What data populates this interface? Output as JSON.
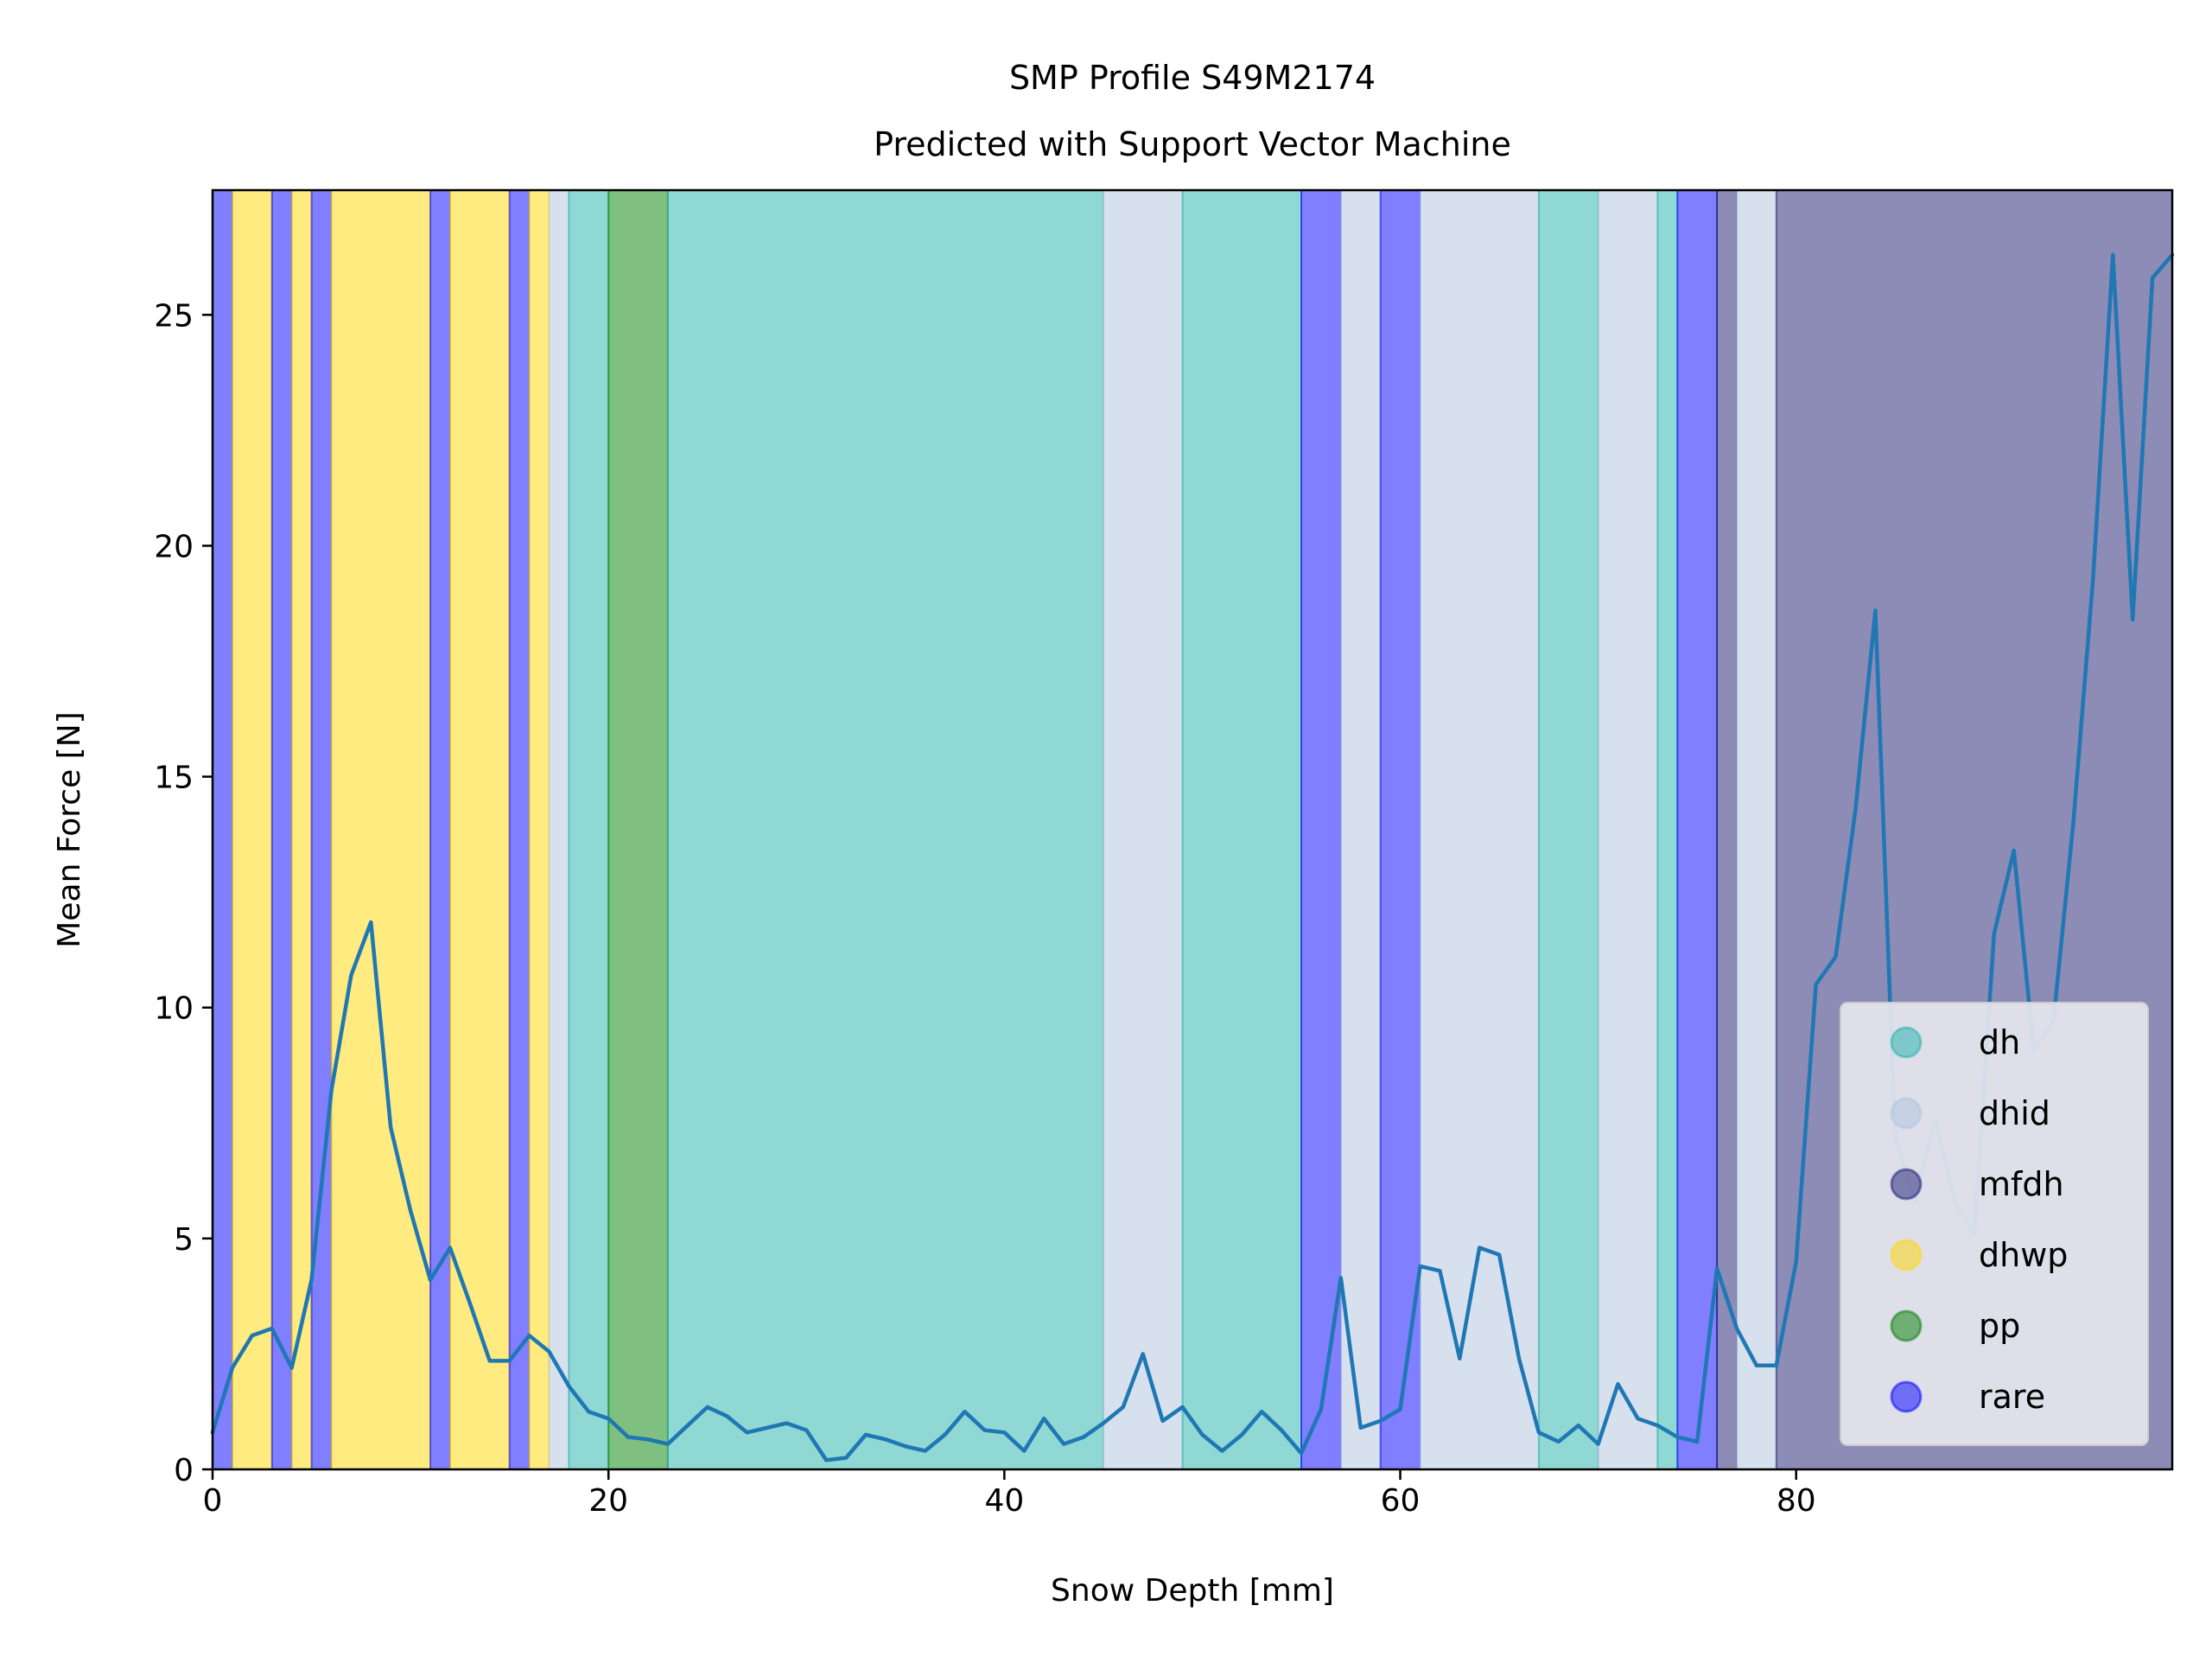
{
  "chart_data": {
    "type": "line",
    "title": "SMP Profile S49M2174",
    "subtitle": "Predicted with Support Vector Machine",
    "xlabel": "Snow Depth [mm]",
    "ylabel": "Mean Force [N]",
    "xlim": [
      0,
      99
    ],
    "ylim": [
      0,
      27.7
    ],
    "xticks": [
      0,
      20,
      40,
      60,
      80
    ],
    "yticks": [
      0,
      5,
      10,
      15,
      20,
      25
    ],
    "grid": false,
    "legend_position": "bottom-right",
    "classes": [
      {
        "name": "dh",
        "color": "#20b2aa"
      },
      {
        "name": "dhid",
        "color": "#b0c4de"
      },
      {
        "name": "mfdh",
        "color": "#191970"
      },
      {
        "name": "dhwp",
        "color": "#ffd700"
      },
      {
        "name": "pp",
        "color": "#008000"
      },
      {
        "name": "rare",
        "color": "#0000ff"
      }
    ],
    "segments": [
      {
        "start": 0,
        "end": 1,
        "label": "rare"
      },
      {
        "start": 1,
        "end": 3,
        "label": "dhwp"
      },
      {
        "start": 3,
        "end": 4,
        "label": "rare"
      },
      {
        "start": 4,
        "end": 5,
        "label": "dhwp"
      },
      {
        "start": 5,
        "end": 6,
        "label": "rare"
      },
      {
        "start": 6,
        "end": 11,
        "label": "dhwp"
      },
      {
        "start": 11,
        "end": 12,
        "label": "rare"
      },
      {
        "start": 12,
        "end": 15,
        "label": "dhwp"
      },
      {
        "start": 15,
        "end": 16,
        "label": "rare"
      },
      {
        "start": 16,
        "end": 17,
        "label": "dhwp"
      },
      {
        "start": 17,
        "end": 18,
        "label": "dhid"
      },
      {
        "start": 18,
        "end": 20,
        "label": "dh"
      },
      {
        "start": 20,
        "end": 23,
        "label": "pp"
      },
      {
        "start": 23,
        "end": 45,
        "label": "dh"
      },
      {
        "start": 45,
        "end": 49,
        "label": "dhid"
      },
      {
        "start": 49,
        "end": 55,
        "label": "dh"
      },
      {
        "start": 55,
        "end": 57,
        "label": "rare"
      },
      {
        "start": 57,
        "end": 59,
        "label": "dhid"
      },
      {
        "start": 59,
        "end": 61,
        "label": "rare"
      },
      {
        "start": 61,
        "end": 67,
        "label": "dhid"
      },
      {
        "start": 67,
        "end": 70,
        "label": "dh"
      },
      {
        "start": 70,
        "end": 73,
        "label": "dhid"
      },
      {
        "start": 73,
        "end": 74,
        "label": "dh"
      },
      {
        "start": 74,
        "end": 76,
        "label": "rare"
      },
      {
        "start": 76,
        "end": 77,
        "label": "mfdh"
      },
      {
        "start": 77,
        "end": 79,
        "label": "dhid"
      },
      {
        "start": 79,
        "end": 99,
        "label": "mfdh"
      }
    ],
    "series": [
      {
        "color": "#1f77b4",
        "x": [
          0,
          1,
          2,
          3,
          4,
          5,
          6,
          7,
          8,
          9,
          10,
          11,
          12,
          13,
          14,
          15,
          16,
          17,
          18,
          19,
          20,
          21,
          22,
          23,
          24,
          25,
          26,
          27,
          28,
          29,
          30,
          31,
          32,
          33,
          34,
          35,
          36,
          37,
          38,
          39,
          40,
          41,
          42,
          43,
          44,
          45,
          46,
          47,
          48,
          49,
          50,
          51,
          52,
          53,
          54,
          55,
          56,
          57,
          58,
          59,
          60,
          61,
          62,
          63,
          64,
          65,
          66,
          67,
          68,
          69,
          70,
          71,
          72,
          73,
          74,
          75,
          76,
          77,
          78,
          79,
          80,
          81,
          82,
          83,
          84,
          85,
          86,
          87,
          88,
          89,
          90,
          91,
          92,
          93,
          94,
          95,
          96,
          97,
          98,
          99
        ],
        "y": [
          0.8,
          2.2,
          2.9,
          3.05,
          2.2,
          4.1,
          8.2,
          10.7,
          11.85,
          7.4,
          5.6,
          4.1,
          4.8,
          3.6,
          2.35,
          2.35,
          2.9,
          2.55,
          1.8,
          1.25,
          1.1,
          0.7,
          0.65,
          0.55,
          0.95,
          1.35,
          1.15,
          0.8,
          0.9,
          1.0,
          0.85,
          0.2,
          0.25,
          0.75,
          0.65,
          0.5,
          0.4,
          0.75,
          1.25,
          0.85,
          0.8,
          0.4,
          1.1,
          0.55,
          0.7,
          1.0,
          1.35,
          2.5,
          1.05,
          1.35,
          0.75,
          0.4,
          0.75,
          1.25,
          0.85,
          0.35,
          1.3,
          4.15,
          0.9,
          1.05,
          1.3,
          4.4,
          4.3,
          2.4,
          4.8,
          4.65,
          2.4,
          0.8,
          0.6,
          0.95,
          0.55,
          1.85,
          1.1,
          0.95,
          0.7,
          0.6,
          4.35,
          3.05,
          2.25,
          2.25,
          4.5,
          10.5,
          11.1,
          14.3,
          18.6,
          7.2,
          5.8,
          7.6,
          5.8,
          5.1,
          11.6,
          13.4,
          9.1,
          9.7,
          14.0,
          19.3,
          26.3,
          18.4,
          25.8,
          26.3
        ]
      }
    ]
  }
}
